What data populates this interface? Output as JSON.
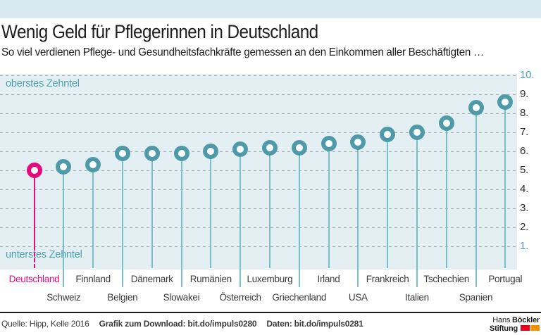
{
  "header": {
    "title": "Wenig Geld für Pflegerinnen in Deutschland",
    "subtitle": "So viel verdienen Pflege- und Gesundheitsfachkräfte gemessen an den Einkommen aller Beschäftigten …"
  },
  "chart_data": {
    "type": "lollipop",
    "title": "Wenig Geld für Pflegerinnen in Deutschland",
    "subtitle": "So viel verdienen Pflege- und Gesundheitsfachkräfte gemessen an den Einkommen aller Beschäftigten …",
    "ylim": [
      1,
      10
    ],
    "grid": true,
    "annotation_top": "oberstes Zehntel",
    "annotation_bottom": "unterstes Zehntel",
    "yticks": [
      {
        "value": 10,
        "label": "10.",
        "accent": true
      },
      {
        "value": 9,
        "label": "9.",
        "accent": false
      },
      {
        "value": 8,
        "label": "8.",
        "accent": false
      },
      {
        "value": 7,
        "label": "7.",
        "accent": false
      },
      {
        "value": 6,
        "label": "6.",
        "accent": false
      },
      {
        "value": 5,
        "label": "5.",
        "accent": false
      },
      {
        "value": 4,
        "label": "4.",
        "accent": false
      },
      {
        "value": 3,
        "label": "3.",
        "accent": false
      },
      {
        "value": 2,
        "label": "2.",
        "accent": false
      },
      {
        "value": 1,
        "label": "1.",
        "accent": true
      }
    ],
    "categories": [
      "Deutschland",
      "Schweiz",
      "Finnland",
      "Belgien",
      "Dänemark",
      "Slowakei",
      "Rumänien",
      "Österreich",
      "Luxemburg",
      "Griechenland",
      "Irland",
      "USA",
      "Frankreich",
      "Italien",
      "Tschechien",
      "Spanien",
      "Portugal"
    ],
    "values": [
      5.0,
      5.2,
      5.3,
      5.9,
      5.9,
      5.9,
      6.0,
      6.1,
      6.2,
      6.2,
      6.4,
      6.5,
      6.9,
      7.0,
      7.5,
      8.3,
      8.6
    ],
    "points": [
      {
        "name": "Deutschland",
        "value": 5.0,
        "label_row": 1,
        "highlight": true
      },
      {
        "name": "Schweiz",
        "value": 5.2,
        "label_row": 2,
        "highlight": false
      },
      {
        "name": "Finnland",
        "value": 5.3,
        "label_row": 1,
        "highlight": false
      },
      {
        "name": "Belgien",
        "value": 5.9,
        "label_row": 2,
        "highlight": false
      },
      {
        "name": "Dänemark",
        "value": 5.9,
        "label_row": 1,
        "highlight": false
      },
      {
        "name": "Slowakei",
        "value": 5.9,
        "label_row": 2,
        "highlight": false
      },
      {
        "name": "Rumänien",
        "value": 6.0,
        "label_row": 1,
        "highlight": false
      },
      {
        "name": "Österreich",
        "value": 6.1,
        "label_row": 2,
        "highlight": false
      },
      {
        "name": "Luxemburg",
        "value": 6.2,
        "label_row": 1,
        "highlight": false
      },
      {
        "name": "Griechenland",
        "value": 6.2,
        "label_row": 2,
        "highlight": false
      },
      {
        "name": "Irland",
        "value": 6.4,
        "label_row": 1,
        "highlight": false
      },
      {
        "name": "USA",
        "value": 6.5,
        "label_row": 2,
        "highlight": false
      },
      {
        "name": "Frankreich",
        "value": 6.9,
        "label_row": 1,
        "highlight": false
      },
      {
        "name": "Italien",
        "value": 7.0,
        "label_row": 2,
        "highlight": false
      },
      {
        "name": "Tschechien",
        "value": 7.5,
        "label_row": 1,
        "highlight": false
      },
      {
        "name": "Spanien",
        "value": 8.3,
        "label_row": 2,
        "highlight": false
      },
      {
        "name": "Portugal",
        "value": 8.6,
        "label_row": 1,
        "highlight": false
      }
    ]
  },
  "colors": {
    "highlight": "#e40a7e",
    "dot": "#4e9aa8",
    "stem": "#79bfca",
    "teal_text": "#4da0ad",
    "plot_bg": "#e3eff2",
    "topbar_bg": "#d9e9f1",
    "grid": "#a6aeae",
    "text_dark": "#1d1d1b",
    "text_gray": "#3c3c3b",
    "logo_red": "#e2001a",
    "logo_orange": "#f29100"
  },
  "footer": {
    "source": "Quelle: Hipp, Kelle 2016",
    "download": "Grafik zum Download: bit.do/impuls0280",
    "data_link": "Daten: bit.do/impuls0281",
    "logo": {
      "line1_light": "Hans",
      "line1_bold": "Böckler",
      "line2_bold": "Stiftung"
    }
  }
}
